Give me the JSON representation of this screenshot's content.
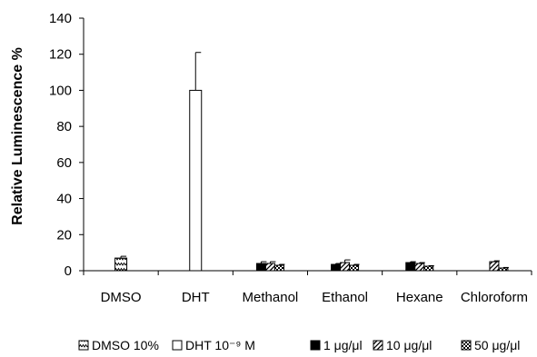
{
  "chart_data": {
    "type": "bar",
    "ylabel": "Relative Luminescence %",
    "xlabel": "",
    "ylim": [
      0,
      140
    ],
    "yticks": [
      0,
      20,
      40,
      60,
      80,
      100,
      120,
      140
    ],
    "grid": false,
    "legend_position": "bottom",
    "categories": [
      "DMSO",
      "DHT",
      "Methanol",
      "Ethanol",
      "Hexane",
      "Chloroform"
    ],
    "series": [
      {
        "name": "DMSO 10%",
        "pattern": "zigzag",
        "values": [
          7,
          null,
          null,
          null,
          null,
          null
        ],
        "errors": [
          1,
          null,
          null,
          null,
          null,
          null
        ]
      },
      {
        "name": "DHT 10⁻⁹ M",
        "pattern": "empty",
        "values": [
          null,
          100,
          null,
          null,
          null,
          null
        ],
        "errors": [
          null,
          21,
          null,
          null,
          null,
          null
        ]
      },
      {
        "name": "1 μg/μl",
        "pattern": "solid",
        "values": [
          null,
          null,
          4,
          3.5,
          4.5,
          0
        ],
        "errors": [
          null,
          null,
          1,
          0.5,
          0.5,
          null
        ]
      },
      {
        "name": "10 μg/μl",
        "pattern": "diagonal",
        "values": [
          null,
          null,
          4,
          4.5,
          4,
          5
        ],
        "errors": [
          null,
          null,
          1,
          1.5,
          0.5,
          0.5
        ]
      },
      {
        "name": "50 μg/μl",
        "pattern": "checker",
        "values": [
          null,
          null,
          3,
          3,
          2.5,
          1.5
        ],
        "errors": [
          null,
          null,
          0.5,
          0.5,
          0.3,
          0.3
        ]
      }
    ]
  }
}
